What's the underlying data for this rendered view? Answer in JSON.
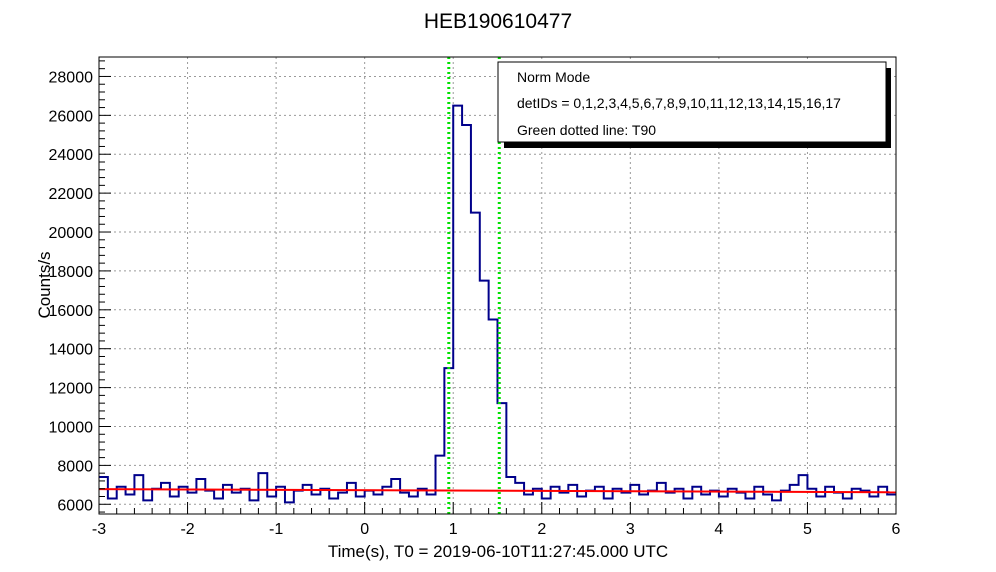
{
  "chart_data": {
    "type": "line",
    "title": "HEB190610477",
    "xlabel": "Time(s), T0 = 2019-06-10T11:27:45.000 UTC",
    "ylabel": "Counts/s",
    "xlim": [
      -3,
      6
    ],
    "ylim": [
      5500,
      29000
    ],
    "x_ticks": [
      -3,
      -2,
      -1,
      0,
      1,
      2,
      3,
      4,
      5,
      6
    ],
    "y_ticks": [
      6000,
      8000,
      10000,
      12000,
      14000,
      16000,
      18000,
      20000,
      22000,
      24000,
      26000,
      28000
    ],
    "grid": true,
    "legend_position": "top-right",
    "legend": [
      "Norm Mode",
      "detIDs = 0,1,2,3,4,5,6,7,8,9,10,11,12,13,14,15,16,17",
      "Green dotted line: T90"
    ],
    "background_level": 6700,
    "t90_lines": [
      0.95,
      1.52
    ],
    "series": [
      {
        "color": "#00008b",
        "bin_width": 0.1,
        "x": [
          -3.0,
          -2.9,
          -2.8,
          -2.7,
          -2.6,
          -2.5,
          -2.4,
          -2.3,
          -2.2,
          -2.1,
          -2.0,
          -1.9,
          -1.8,
          -1.7,
          -1.6,
          -1.5,
          -1.4,
          -1.3,
          -1.2,
          -1.1,
          -1.0,
          -0.9,
          -0.8,
          -0.7,
          -0.6,
          -0.5,
          -0.4,
          -0.3,
          -0.2,
          -0.1,
          0.0,
          0.1,
          0.2,
          0.3,
          0.4,
          0.5,
          0.6,
          0.7,
          0.8,
          0.9,
          1.0,
          1.1,
          1.2,
          1.3,
          1.4,
          1.5,
          1.6,
          1.7,
          1.8,
          1.9,
          2.0,
          2.1,
          2.2,
          2.3,
          2.4,
          2.5,
          2.6,
          2.7,
          2.8,
          2.9,
          3.0,
          3.1,
          3.2,
          3.3,
          3.4,
          3.5,
          3.6,
          3.7,
          3.8,
          3.9,
          4.0,
          4.1,
          4.2,
          4.3,
          4.4,
          4.5,
          4.6,
          4.7,
          4.8,
          4.9,
          5.0,
          5.1,
          5.2,
          5.3,
          5.4,
          5.5,
          5.6,
          5.7,
          5.8,
          5.9
        ],
        "values": [
          7400,
          6300,
          6900,
          6500,
          7500,
          6200,
          6800,
          7100,
          6400,
          6900,
          6600,
          7300,
          6700,
          6300,
          7000,
          6600,
          6800,
          6200,
          7600,
          6400,
          6900,
          6100,
          6700,
          7000,
          6500,
          6800,
          6300,
          6600,
          7100,
          6400,
          6700,
          6500,
          6900,
          7300,
          6600,
          6400,
          6800,
          6500,
          8500,
          13000,
          26500,
          25500,
          21000,
          17500,
          15500,
          11200,
          7400,
          7100,
          6500,
          6800,
          6300,
          6900,
          6600,
          7000,
          6400,
          6700,
          6900,
          6300,
          6800,
          6600,
          7000,
          6500,
          6700,
          7100,
          6600,
          6800,
          6300,
          6900,
          6500,
          6700,
          6400,
          6800,
          6600,
          6300,
          6900,
          6500,
          6200,
          6700,
          7000,
          7500,
          6800,
          6400,
          6900,
          6600,
          6300,
          6800,
          6700,
          6400,
          6900,
          6500
        ]
      },
      {
        "color": "#ff0000",
        "x": [
          -3,
          6
        ],
        "values": [
          6780,
          6620
        ]
      }
    ]
  }
}
